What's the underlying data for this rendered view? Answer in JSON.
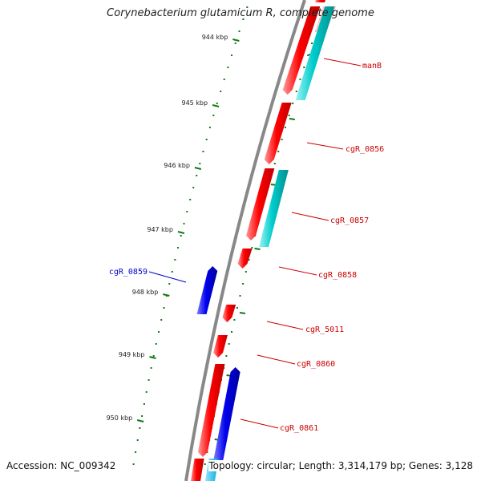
{
  "title": "Corynebacterium glutamicum R, complete genome",
  "footer": {
    "accession": "Accession: NC_009342",
    "topology": "Topology: circular; Length: 3,314,179 bp; Genes: 3,128"
  },
  "colors": {
    "forward": "#ff0000",
    "forward_alt": "#00cccc",
    "reverse": "#0000ee",
    "reverse_alt": "#00b8e6",
    "backbone": "#888888",
    "ticks": "#117a11",
    "label_forward": "#cc0000",
    "label_reverse": "#0000cc"
  },
  "scale": {
    "unit": "kbp",
    "ticks": [
      "944 kbp",
      "945 kbp",
      "946 kbp",
      "947 kbp",
      "948 kbp",
      "949 kbp",
      "950 kbp"
    ]
  },
  "genes": [
    {
      "label": "manB",
      "strand": "forward"
    },
    {
      "label": "cgR_0856",
      "strand": "forward"
    },
    {
      "label": "cgR_0857",
      "strand": "forward"
    },
    {
      "label": "cgR_0858",
      "strand": "forward"
    },
    {
      "label": "cgR_0859",
      "strand": "reverse"
    },
    {
      "label": "cgR_5011",
      "strand": "forward"
    },
    {
      "label": "cgR_0860",
      "strand": "forward"
    },
    {
      "label": "cgR_0861",
      "strand": "forward"
    }
  ]
}
